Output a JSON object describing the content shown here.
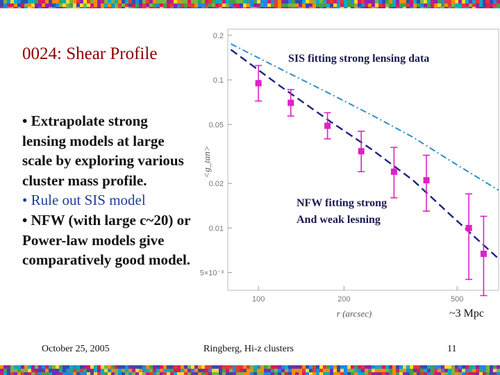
{
  "slide": {
    "title": "0024: Shear Profile",
    "bullets": [
      "• Extrapolate strong lensing models at large scale by exploring various cluster mass profile.",
      "• Rule out SIS model",
      "• NFW  (with large c~20) or Power-law models give comparatively good model."
    ]
  },
  "annotations": {
    "sis": "SIS fitting strong lensing data",
    "nfw_line1": "NFW fitting strong",
    "nfw_line2": "And weak lesning",
    "scale": "~3 Mpc"
  },
  "footer": {
    "date": "October 25, 2005",
    "venue": "Ringberg, Hi-z clusters",
    "page": "11"
  },
  "colors": {
    "title": "#8b0000",
    "highlight": "#1f3e9c",
    "data_points": "#e020c8",
    "sis_curve": "#2a8ed0",
    "nfw_curve": "#1a237e"
  },
  "chart_data": {
    "type": "scatter",
    "xlabel": "r (arcsec)",
    "ylabel": "<g_tan>",
    "xscale": "log",
    "yscale": "log",
    "xlim": [
      78,
      700
    ],
    "ylim": [
      0.0038,
      0.22
    ],
    "x_ticks": [
      {
        "v": 100,
        "label": "100"
      },
      {
        "v": 200,
        "label": "200"
      },
      {
        "v": 500,
        "label": "500"
      }
    ],
    "y_ticks": [
      {
        "v": 0.2,
        "label": "0.2"
      },
      {
        "v": 0.1,
        "label": "0.1"
      },
      {
        "v": 0.05,
        "label": "0.05"
      },
      {
        "v": 0.02,
        "label": "0.02"
      },
      {
        "v": 0.01,
        "label": "0.01"
      },
      {
        "v": 0.005,
        "label": "5×10⁻³"
      }
    ],
    "points": [
      {
        "x": 100,
        "y": 0.095,
        "ylo": 0.072,
        "yhi": 0.125
      },
      {
        "x": 130,
        "y": 0.07,
        "ylo": 0.057,
        "yhi": 0.086
      },
      {
        "x": 175,
        "y": 0.049,
        "ylo": 0.04,
        "yhi": 0.06
      },
      {
        "x": 230,
        "y": 0.033,
        "ylo": 0.024,
        "yhi": 0.045
      },
      {
        "x": 300,
        "y": 0.024,
        "ylo": 0.016,
        "yhi": 0.035
      },
      {
        "x": 390,
        "y": 0.021,
        "ylo": 0.013,
        "yhi": 0.031
      },
      {
        "x": 550,
        "y": 0.01,
        "ylo": 0.0045,
        "yhi": 0.017
      },
      {
        "x": 620,
        "y": 0.0067,
        "ylo": 0.0035,
        "yhi": 0.012
      }
    ],
    "series": [
      {
        "name": "SIS fitting strong lensing data",
        "style": "dash-dot",
        "x": [
          80,
          120,
          180,
          250,
          350,
          480,
          700
        ],
        "y": [
          0.175,
          0.118,
          0.08,
          0.058,
          0.041,
          0.028,
          0.018
        ]
      },
      {
        "name": "NFW fitting strong and weak lensing",
        "style": "dashed",
        "x": [
          80,
          120,
          180,
          250,
          350,
          480,
          700
        ],
        "y": [
          0.16,
          0.09,
          0.052,
          0.034,
          0.021,
          0.012,
          0.0062
        ]
      }
    ]
  }
}
